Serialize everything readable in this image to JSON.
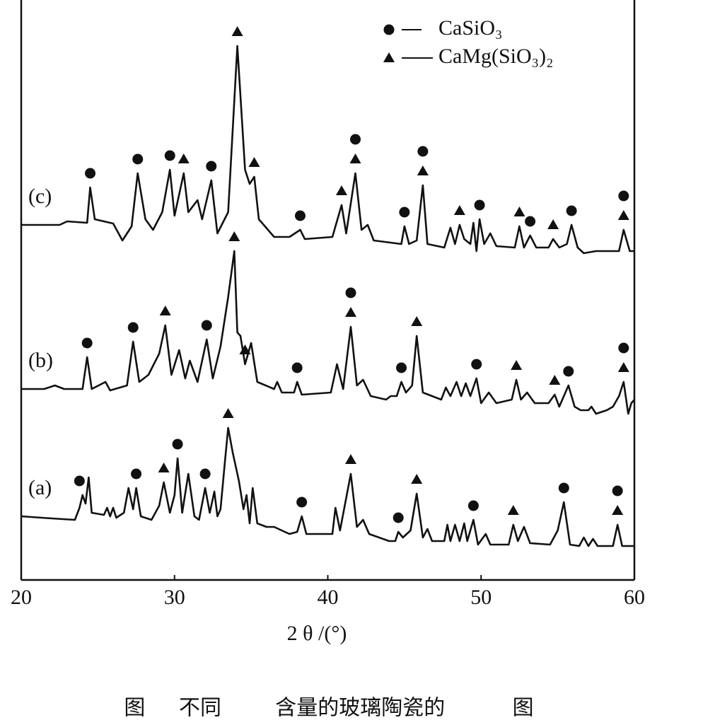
{
  "chart_data": {
    "type": "line",
    "xlabel": "2 θ /(°)",
    "caption": "图     不同        含量的玻璃陶瓷的          图",
    "xlim": [
      20,
      60
    ],
    "xticks": [
      20,
      30,
      40,
      50,
      60
    ],
    "ylim": [
      0,
      820
    ],
    "legend": [
      {
        "symbol": "circle",
        "label": "CaSiO₃"
      },
      {
        "symbol": "triangle",
        "label": "CaMg(SiO₃)₂"
      }
    ],
    "series": [
      {
        "name": "(c)",
        "color": "#111111",
        "x": [
          20,
          22.5,
          23.0,
          24.3,
          24.5,
          24.8,
          26.0,
          26.6,
          27.2,
          27.6,
          28.1,
          28.6,
          29.2,
          29.7,
          30.0,
          30.6,
          30.9,
          31.5,
          31.8,
          32.4,
          32.8,
          33.5,
          34.1,
          34.6,
          34.9,
          35.2,
          35.5,
          36.5,
          37.5,
          38.2,
          38.5,
          40.3,
          40.9,
          41.2,
          41.8,
          42.2,
          42.6,
          43.0,
          44.8,
          45.0,
          45.3,
          45.8,
          46.2,
          46.5,
          47.6,
          48.0,
          48.3,
          48.6,
          48.9,
          49.3,
          49.5,
          49.7,
          49.9,
          50.2,
          50.6,
          51.0,
          52.2,
          52.5,
          52.8,
          53.2,
          53.6,
          54.4,
          54.7,
          55.1,
          55.6,
          55.9,
          56.3,
          56.7,
          57.5,
          59.0,
          59.3,
          59.7,
          60.0
        ],
        "values": [
          502,
          502,
          507,
          505,
          555,
          510,
          504,
          480,
          500,
          575,
          510,
          495,
          520,
          580,
          515,
          575,
          520,
          537,
          510,
          565,
          490,
          520,
          755,
          580,
          560,
          570,
          510,
          485,
          485,
          495,
          482,
          485,
          530,
          490,
          575,
          495,
          502,
          480,
          475,
          500,
          475,
          480,
          558,
          475,
          470,
          498,
          475,
          502,
          482,
          475,
          505,
          465,
          510,
          475,
          490,
          472,
          470,
          500,
          470,
          487,
          470,
          470,
          482,
          470,
          475,
          502,
          470,
          462,
          465,
          465,
          495,
          465,
          465
        ],
        "circles": [
          24.5,
          27.6,
          29.7,
          32.4,
          38.2,
          41.8,
          45.0,
          46.2,
          49.9,
          53.2,
          55.9,
          59.3
        ],
        "triangles": [
          30.6,
          34.1,
          35.2,
          40.9,
          41.8,
          46.2,
          48.6,
          52.5,
          54.7,
          59.3
        ]
      },
      {
        "name": "(b)",
        "color": "#111111",
        "x": [
          20,
          21.5,
          22.2,
          22.8,
          24.0,
          24.3,
          24.6,
          25.5,
          25.8,
          26.9,
          27.3,
          27.7,
          28.3,
          29.0,
          29.4,
          29.8,
          30.3,
          30.7,
          31.0,
          31.5,
          32.1,
          32.5,
          33.0,
          33.5,
          33.9,
          34.1,
          34.3,
          34.6,
          35.0,
          35.4,
          36.5,
          36.7,
          37.0,
          37.8,
          38.0,
          38.3,
          40.2,
          40.6,
          41.0,
          41.5,
          41.9,
          42.3,
          42.8,
          43.8,
          44.1,
          44.5,
          44.8,
          45.1,
          45.5,
          45.8,
          46.2,
          47.4,
          47.7,
          48.0,
          48.4,
          48.7,
          49.0,
          49.3,
          49.7,
          50.0,
          50.5,
          51.0,
          52.0,
          52.3,
          52.6,
          53.0,
          53.5,
          54.4,
          54.8,
          55.1,
          55.4,
          55.7,
          56.1,
          56.5,
          57.0,
          57.2,
          57.5,
          58.2,
          58.6,
          59.0,
          59.3,
          59.6,
          59.8,
          60.0
        ],
        "values": [
          270,
          270,
          275,
          270,
          270,
          315,
          270,
          280,
          268,
          275,
          337,
          280,
          290,
          320,
          360,
          290,
          325,
          285,
          310,
          280,
          340,
          285,
          330,
          400,
          465,
          350,
          345,
          305,
          335,
          280,
          270,
          280,
          265,
          265,
          280,
          262,
          265,
          305,
          270,
          358,
          275,
          283,
          260,
          255,
          260,
          260,
          280,
          265,
          275,
          345,
          265,
          255,
          272,
          260,
          280,
          260,
          278,
          260,
          285,
          250,
          265,
          250,
          255,
          283,
          255,
          265,
          250,
          250,
          262,
          245,
          260,
          275,
          245,
          240,
          240,
          245,
          235,
          240,
          245,
          260,
          280,
          235,
          250,
          255
        ],
        "circles": [
          24.3,
          27.3,
          32.1,
          38.0,
          41.5,
          44.8,
          49.7,
          55.7,
          59.3
        ],
        "triangles": [
          29.4,
          33.9,
          34.6,
          41.5,
          45.8,
          52.3,
          54.8,
          59.3
        ]
      },
      {
        "name": "(a)",
        "color": "#111111",
        "x": [
          20,
          22,
          23.5,
          23.8,
          24.0,
          24.2,
          24.4,
          24.6,
          25.4,
          25.6,
          25.8,
          26.0,
          26.2,
          26.7,
          27.0,
          27.3,
          27.5,
          27.8,
          28.5,
          29.0,
          29.3,
          29.7,
          30.0,
          30.2,
          30.5,
          30.9,
          31.3,
          31.6,
          32.0,
          32.3,
          32.6,
          32.8,
          33.0,
          33.3,
          33.5,
          33.8,
          34.2,
          34.5,
          34.7,
          34.9,
          35.1,
          35.4,
          36.0,
          36.5,
          37.5,
          38.0,
          38.3,
          38.6,
          40.3,
          40.5,
          40.8,
          41.5,
          41.9,
          42.3,
          42.7,
          44.0,
          44.4,
          44.6,
          44.9,
          45.4,
          45.8,
          46.2,
          46.5,
          46.8,
          47.6,
          47.8,
          48.0,
          48.3,
          48.6,
          48.9,
          49.1,
          49.5,
          49.8,
          50.3,
          50.6,
          51.8,
          52.1,
          52.4,
          52.8,
          53.2,
          54.5,
          55.0,
          55.4,
          55.8,
          56.4,
          56.7,
          57.0,
          57.3,
          57.6,
          58.6,
          58.9,
          59.2,
          60.0
        ],
        "values": [
          90,
          87,
          85,
          102,
          120,
          108,
          145,
          95,
          92,
          102,
          90,
          102,
          88,
          95,
          130,
          100,
          130,
          90,
          85,
          105,
          138,
          95,
          120,
          172,
          95,
          150,
          90,
          85,
          130,
          95,
          125,
          90,
          100,
          170,
          215,
          180,
          140,
          100,
          120,
          80,
          130,
          80,
          75,
          75,
          65,
          68,
          90,
          65,
          65,
          102,
          70,
          150,
          75,
          85,
          65,
          55,
          55,
          68,
          60,
          70,
          122,
          60,
          72,
          55,
          55,
          78,
          55,
          78,
          55,
          80,
          55,
          85,
          50,
          65,
          50,
          50,
          78,
          55,
          75,
          52,
          50,
          70,
          110,
          50,
          48,
          60,
          48,
          58,
          48,
          48,
          78,
          48,
          48
        ],
        "circles": [
          23.8,
          27.5,
          30.2,
          32.0,
          38.3,
          44.6,
          49.5,
          55.4,
          58.9
        ],
        "triangles": [
          29.3,
          33.5,
          41.5,
          45.8,
          52.1,
          58.9
        ]
      }
    ]
  }
}
